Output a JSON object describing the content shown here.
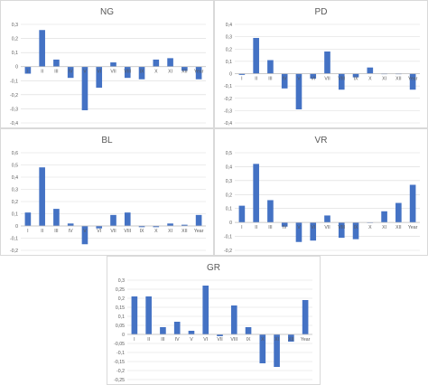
{
  "chart_data": [
    {
      "type": "bar",
      "title": "NG",
      "categories": [
        "I",
        "II",
        "III",
        "IV",
        "V",
        "VI",
        "VII",
        "VIII",
        "IX",
        "X",
        "XI",
        "XII",
        "Year"
      ],
      "values": [
        -0.05,
        0.26,
        0.05,
        -0.08,
        -0.31,
        -0.15,
        0.03,
        -0.08,
        -0.09,
        0.05,
        0.06,
        -0.03,
        -0.09
      ],
      "ylim": [
        -0.4,
        0.3
      ],
      "yticks": [
        -0.4,
        -0.3,
        -0.2,
        -0.1,
        0,
        0.1,
        0.2,
        0.3
      ],
      "ytick_labels": [
        "-0,4",
        "-0,3",
        "-0,2",
        "-0,1",
        "0",
        "0,1",
        "0,2",
        "0,3"
      ],
      "grid": true,
      "color": "#4472c4"
    },
    {
      "type": "bar",
      "title": "PD",
      "categories": [
        "I",
        "II",
        "III",
        "IV",
        "V",
        "VI",
        "VII",
        "VIII",
        "IX",
        "X",
        "XI",
        "XII",
        "Year"
      ],
      "values": [
        -0.01,
        0.29,
        0.11,
        -0.12,
        -0.29,
        -0.04,
        0.18,
        -0.13,
        -0.03,
        0.05,
        0.0,
        0.0,
        -0.13
      ],
      "ylim": [
        -0.4,
        0.4
      ],
      "yticks": [
        -0.4,
        -0.3,
        -0.2,
        -0.1,
        0,
        0.1,
        0.2,
        0.3,
        0.4
      ],
      "ytick_labels": [
        "-0,4",
        "-0,3",
        "-0,2",
        "-0,1",
        "0",
        "0,1",
        "0,2",
        "0,3",
        "0,4"
      ],
      "grid": true,
      "color": "#4472c4"
    },
    {
      "type": "bar",
      "title": "BL",
      "categories": [
        "I",
        "II",
        "III",
        "IV",
        "V",
        "VI",
        "VII",
        "VIII",
        "IX",
        "X",
        "XI",
        "XII",
        "Year"
      ],
      "values": [
        0.11,
        0.48,
        0.14,
        0.02,
        -0.15,
        -0.02,
        0.09,
        0.11,
        -0.01,
        -0.01,
        0.02,
        0.01,
        0.09
      ],
      "ylim": [
        -0.2,
        0.6
      ],
      "yticks": [
        -0.2,
        -0.1,
        0,
        0.1,
        0.2,
        0.3,
        0.4,
        0.5,
        0.6
      ],
      "ytick_labels": [
        "-0,2",
        "-0,1",
        "0",
        "0,1",
        "0,2",
        "0,3",
        "0,4",
        "0,5",
        "0,6"
      ],
      "grid": true,
      "color": "#4472c4"
    },
    {
      "type": "bar",
      "title": "VR",
      "categories": [
        "I",
        "II",
        "III",
        "IV",
        "V",
        "VI",
        "VII",
        "VIII",
        "IX",
        "X",
        "XI",
        "XII",
        "Year"
      ],
      "values": [
        0.12,
        0.42,
        0.16,
        -0.03,
        -0.14,
        -0.13,
        0.05,
        -0.11,
        -0.12,
        0.0,
        0.08,
        0.14,
        0.27
      ],
      "ylim": [
        -0.2,
        0.5
      ],
      "yticks": [
        -0.2,
        -0.1,
        0,
        0.1,
        0.2,
        0.3,
        0.4,
        0.5
      ],
      "ytick_labels": [
        "-0,2",
        "-0,1",
        "0",
        "0,1",
        "0,2",
        "0,3",
        "0,4",
        "0,5"
      ],
      "grid": true,
      "color": "#4472c4"
    },
    {
      "type": "bar",
      "title": "GR",
      "categories": [
        "I",
        "II",
        "III",
        "IV",
        "V",
        "VI",
        "VII",
        "VIII",
        "IX",
        "X",
        "XI",
        "XII",
        "Year"
      ],
      "values": [
        0.21,
        0.21,
        0.04,
        0.07,
        0.02,
        0.27,
        -0.01,
        0.16,
        0.04,
        -0.16,
        -0.18,
        -0.04,
        0.19
      ],
      "ylim": [
        -0.25,
        0.3
      ],
      "yticks": [
        -0.25,
        -0.2,
        -0.15,
        -0.1,
        -0.05,
        0,
        0.05,
        0.1,
        0.15,
        0.2,
        0.25,
        0.3
      ],
      "ytick_labels": [
        "-0,25",
        "-0,2",
        "-0,15",
        "-0,1",
        "-0,05",
        "0",
        "0,05",
        "0,1",
        "0,15",
        "0,2",
        "0,25",
        "0,3"
      ],
      "grid": true,
      "color": "#4472c4"
    }
  ]
}
